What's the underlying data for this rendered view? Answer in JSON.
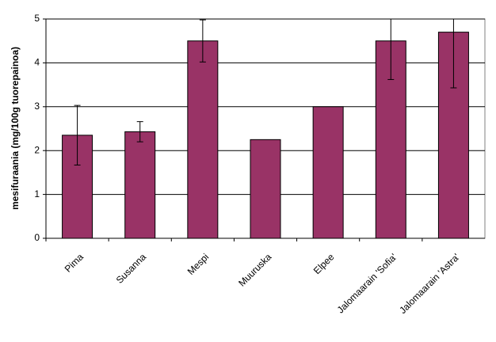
{
  "chart_data": {
    "type": "bar",
    "y_label": "mesifuraania (mg/100g tuorepainoa)",
    "categories": [
      "Pima",
      "Susanna",
      "Mespi",
      "Muuruska",
      "Elpee",
      "Jalomaarain 'Sofia'",
      "Jalomaarain 'Astra'"
    ],
    "values": [
      2.35,
      2.43,
      4.5,
      2.25,
      3.0,
      4.5,
      4.7
    ],
    "errors": [
      0.68,
      0.23,
      0.48,
      null,
      null,
      0.88,
      1.27
    ],
    "color": "#993366",
    "ylim": [
      0,
      5
    ],
    "yticks": [
      0,
      1,
      2,
      3,
      4,
      5
    ],
    "grid": true
  }
}
